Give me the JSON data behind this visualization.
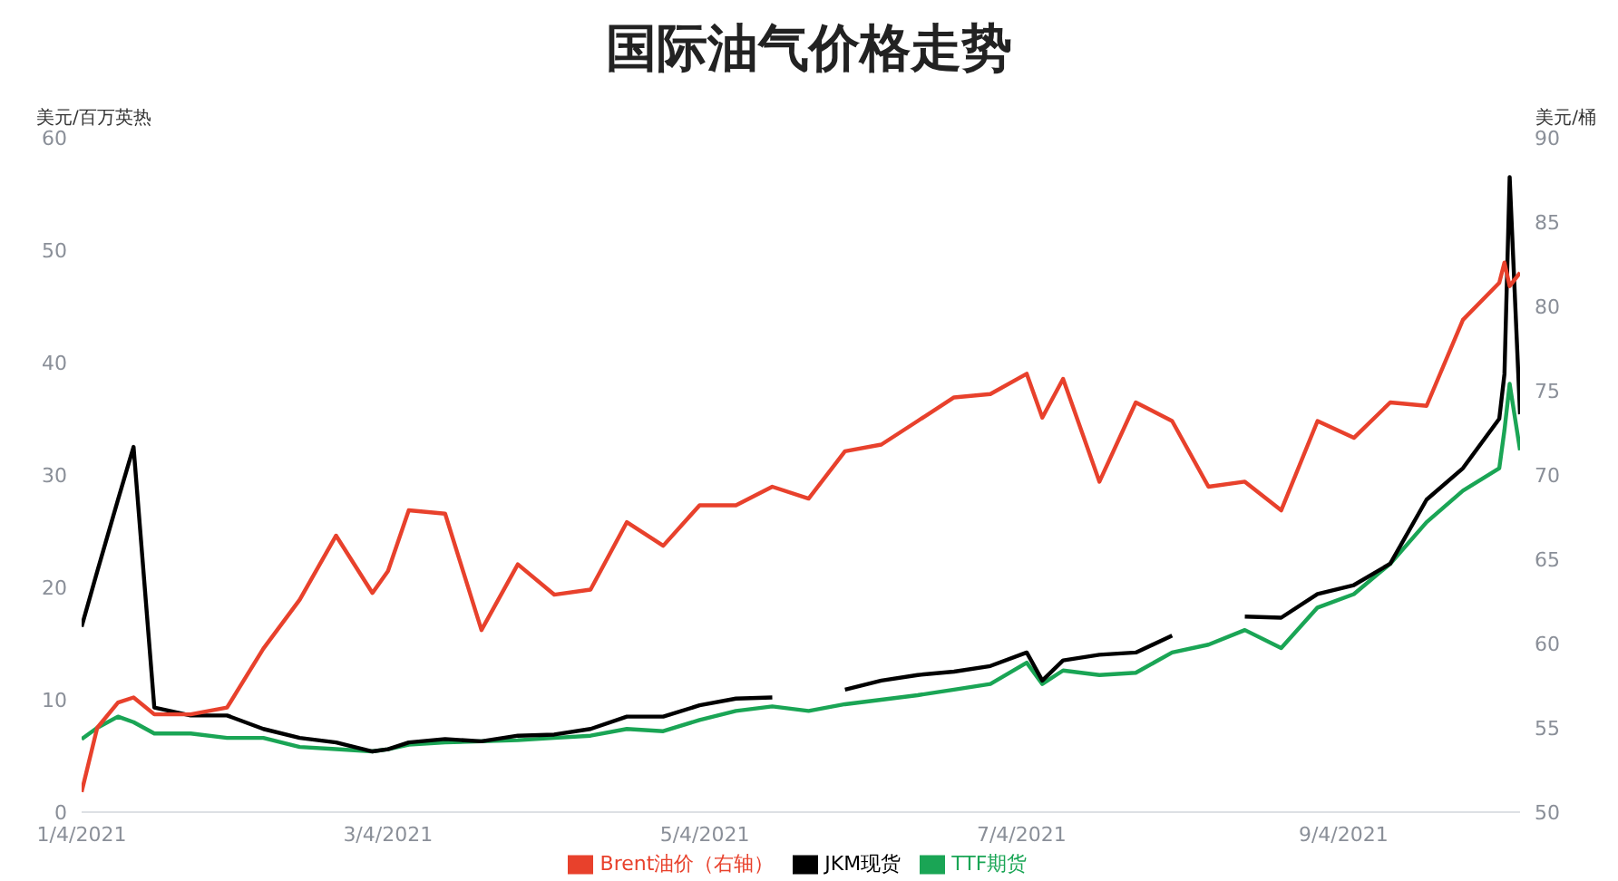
{
  "chart_data": {
    "type": "line",
    "title": "国际油气价格走势",
    "ylabel": "美元/百万英热",
    "y2label": "美元/桶",
    "x": [
      "2021-01-04",
      "2021-01-07",
      "2021-01-11",
      "2021-01-14",
      "2021-01-18",
      "2021-01-25",
      "2021-02-01",
      "2021-02-08",
      "2021-02-15",
      "2021-02-22",
      "2021-03-01",
      "2021-03-04",
      "2021-03-08",
      "2021-03-15",
      "2021-03-22",
      "2021-03-29",
      "2021-04-05",
      "2021-04-12",
      "2021-04-19",
      "2021-04-26",
      "2021-05-03",
      "2021-05-10",
      "2021-05-17",
      "2021-05-24",
      "2021-05-31",
      "2021-06-07",
      "2021-06-14",
      "2021-06-21",
      "2021-06-28",
      "2021-07-05",
      "2021-07-08",
      "2021-07-12",
      "2021-07-19",
      "2021-07-26",
      "2021-08-02",
      "2021-08-09",
      "2021-08-16",
      "2021-08-23",
      "2021-08-30",
      "2021-09-06",
      "2021-09-13",
      "2021-09-20",
      "2021-09-27",
      "2021-10-04",
      "2021-10-05",
      "2021-10-06",
      "2021-10-08"
    ],
    "series": [
      {
        "name": "TTF期货",
        "color": "#1aa555",
        "values": [
          6.5,
          7.5,
          8.5,
          8.0,
          7.0,
          7.0,
          6.6,
          6.6,
          5.8,
          5.6,
          5.4,
          5.6,
          6.0,
          6.2,
          6.3,
          6.4,
          6.6,
          6.8,
          7.4,
          7.2,
          8.2,
          9.0,
          9.4,
          9.0,
          9.6,
          10.0,
          10.4,
          10.9,
          11.4,
          13.3,
          11.4,
          12.6,
          12.2,
          12.4,
          14.2,
          14.9,
          16.2,
          14.6,
          18.2,
          19.4,
          22.1,
          25.8,
          28.6,
          30.6,
          34.0,
          38.1,
          32.2
        ]
      },
      {
        "name": "JKM现货",
        "color": "#000000",
        "values": [
          16.5,
          21.4,
          27.8,
          32.5,
          9.3,
          8.6,
          8.6,
          7.4,
          6.6,
          6.2,
          5.4,
          5.6,
          6.2,
          6.5,
          6.3,
          6.8,
          6.9,
          7.4,
          8.5,
          8.5,
          9.5,
          10.1,
          10.2,
          null,
          10.9,
          11.7,
          12.2,
          12.5,
          13.0,
          14.2,
          11.7,
          13.5,
          14.0,
          14.2,
          15.7,
          null,
          17.4,
          17.3,
          19.4,
          20.2,
          22.1,
          27.8,
          30.6,
          35.0,
          39.0,
          56.5,
          35.4
        ]
      },
      {
        "name": "Brent油价（右轴）",
        "color": "#e8412c",
        "axis": "y2",
        "values": [
          51.2,
          55.0,
          56.5,
          56.8,
          55.8,
          55.8,
          56.2,
          59.7,
          62.6,
          66.4,
          63.0,
          64.3,
          67.9,
          67.7,
          60.8,
          64.7,
          62.9,
          63.2,
          67.2,
          65.8,
          68.2,
          68.2,
          69.3,
          68.6,
          71.4,
          71.8,
          73.2,
          74.6,
          74.8,
          76.0,
          73.4,
          75.7,
          69.6,
          74.3,
          73.2,
          69.3,
          69.6,
          67.9,
          73.2,
          72.2,
          74.3,
          74.1,
          79.2,
          81.4,
          82.6,
          81.2,
          82.0
        ]
      }
    ],
    "xlim": [
      "2021-01-04",
      "2021-10-08"
    ],
    "xticks": [
      {
        "value": "2021-01-04",
        "label": "1/4/2021"
      },
      {
        "value": "2021-03-04",
        "label": "3/4/2021"
      },
      {
        "value": "2021-05-04",
        "label": "5/4/2021"
      },
      {
        "value": "2021-07-04",
        "label": "7/4/2021"
      },
      {
        "value": "2021-09-04",
        "label": "9/4/2021"
      }
    ],
    "ylim": [
      0,
      60
    ],
    "yticks": [
      0,
      10,
      20,
      30,
      40,
      50,
      60
    ],
    "y2lim": [
      50,
      90
    ],
    "y2ticks": [
      50,
      55,
      60,
      65,
      70,
      75,
      80,
      85,
      90
    ],
    "legend": "bottom",
    "grid": false,
    "marker": "none",
    "line_style": "solid"
  }
}
